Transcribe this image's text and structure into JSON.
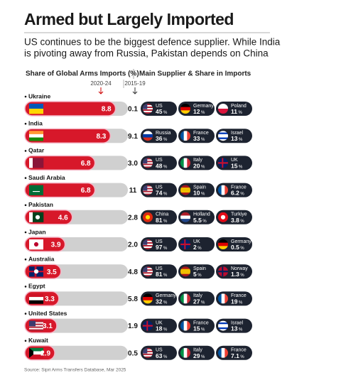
{
  "chart_data": {
    "type": "bar",
    "title": "Armed but Largely Imported",
    "subtitle": [
      "US continues to be the biggest defence supplier. While India",
      "is pivoting away from Russia, Pakistan depends on China"
    ],
    "left_header": "Share of Global Arms Imports (%)",
    "right_header": "Main Supplier & Share in Imports",
    "categories": [
      "Ukraine",
      "India",
      "Qatar",
      "Saudi Arabia",
      "Pakistan",
      "Japan",
      "Australia",
      "Egypt",
      "United States",
      "Kuwait"
    ],
    "series": [
      {
        "name": "2020-24",
        "color": "#d7182a",
        "values": [
          8.8,
          8.3,
          6.8,
          6.8,
          4.6,
          3.9,
          3.5,
          3.3,
          3.1,
          2.9
        ]
      },
      {
        "name": "2015-19",
        "values": [
          0.1,
          9.1,
          3.0,
          11,
          2.8,
          2.0,
          4.8,
          5.8,
          1.9,
          0.5
        ],
        "value_labels": [
          "0.1",
          "9.1",
          "3.0",
          "11",
          "2.8",
          "2.0",
          "4.8",
          "5.8",
          "1.9",
          "0.5"
        ]
      }
    ],
    "xlim": [
      0,
      10
    ],
    "track_color": "#d0d0d0",
    "chip_color": "#1d2330",
    "share_unit": "%",
    "suppliers": [
      [
        {
          "name": "US",
          "share": 45
        },
        {
          "name": "Germany",
          "share": 12
        },
        {
          "name": "Poland",
          "share": 11
        }
      ],
      [
        {
          "name": "Russia",
          "share": 36
        },
        {
          "name": "France",
          "share": 33
        },
        {
          "name": "Israel",
          "share": 13
        }
      ],
      [
        {
          "name": "US",
          "share": 48
        },
        {
          "name": "Italy",
          "share": 20
        },
        {
          "name": "UK",
          "share": 15
        }
      ],
      [
        {
          "name": "US",
          "share": 74
        },
        {
          "name": "Spain",
          "share": 10
        },
        {
          "name": "France",
          "share": 6.2
        }
      ],
      [
        {
          "name": "China",
          "share": 81
        },
        {
          "name": "Holland",
          "share": 5.5
        },
        {
          "name": "Turkiye",
          "share": 3.8
        }
      ],
      [
        {
          "name": "US",
          "share": 97
        },
        {
          "name": "UK",
          "share": 2
        },
        {
          "name": "Germany",
          "share": 0.5
        }
      ],
      [
        {
          "name": "US",
          "share": 81
        },
        {
          "name": "Spain",
          "share": 5
        },
        {
          "name": "Norway",
          "share": 1.3
        }
      ],
      [
        {
          "name": "Germany",
          "share": 32
        },
        {
          "name": "Italy",
          "share": 27
        },
        {
          "name": "France",
          "share": 19
        }
      ],
      [
        {
          "name": "UK",
          "share": 18
        },
        {
          "name": "France",
          "share": 15
        },
        {
          "name": "Israel",
          "share": 13
        }
      ],
      [
        {
          "name": "US",
          "share": 63
        },
        {
          "name": "Italy",
          "share": 29
        },
        {
          "name": "France",
          "share": 7.1
        }
      ]
    ],
    "source": "Source: Sipri Arms Transfers Database, Mar 2025"
  }
}
